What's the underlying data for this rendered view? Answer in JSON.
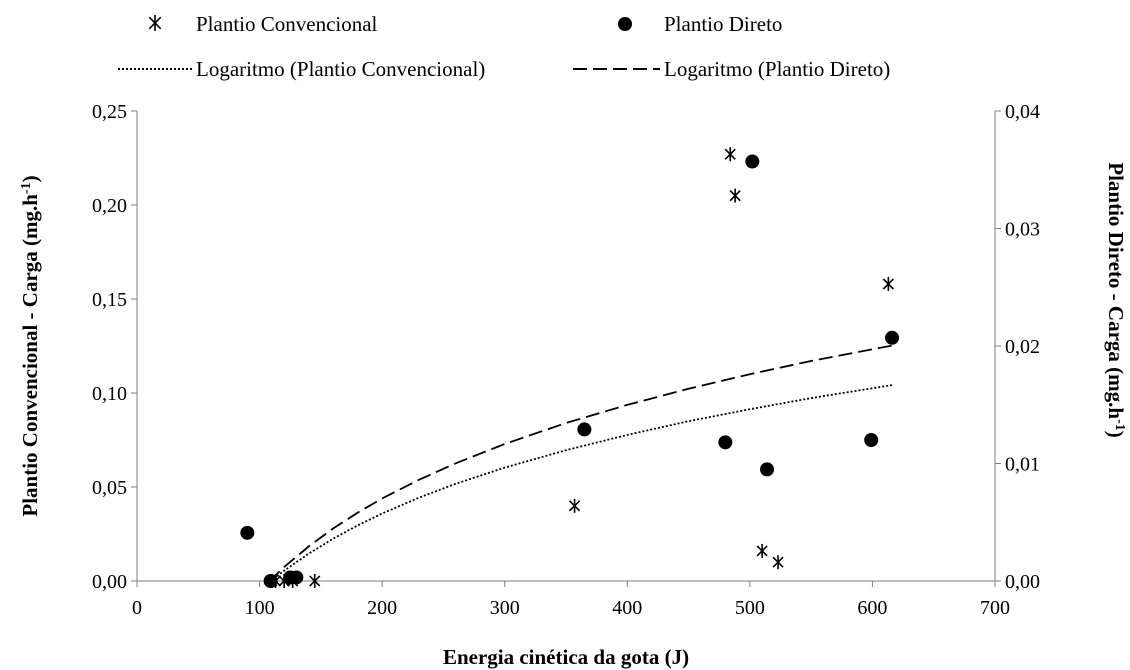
{
  "chart_data": {
    "type": "scatter",
    "xlabel": "Energia cinética da gota (J)",
    "ylabel_left": "Plantio Convencional - Carga (mg.h",
    "ylabel_left_sup": "-1",
    "ylabel_left_tail": ")",
    "ylabel_right": "Plantio Direto - Carga (mg.h",
    "ylabel_right_sup": "-1",
    "ylabel_right_tail": ")",
    "xlim": [
      0,
      700
    ],
    "ylim_left": [
      0,
      0.25
    ],
    "ylim_right": [
      0,
      0.04
    ],
    "x_ticks": [
      "0",
      "100",
      "200",
      "300",
      "400",
      "500",
      "600",
      "700"
    ],
    "y_left_ticks": [
      "0,00",
      "0,05",
      "0,10",
      "0,15",
      "0,20",
      "0,25"
    ],
    "y_right_ticks": [
      "0,00",
      "0,01",
      "0,02",
      "0,03",
      "0,04"
    ],
    "grid": false,
    "legend_position": "top",
    "series": [
      {
        "name": "Plantio Convencional",
        "marker": "asterisk",
        "axis": "left",
        "points": [
          [
            110,
            0.0
          ],
          [
            113,
            0.0
          ],
          [
            120,
            0.0
          ],
          [
            127,
            0.0
          ],
          [
            145,
            0.0
          ],
          [
            357,
            0.04
          ],
          [
            484,
            0.227
          ],
          [
            488,
            0.205
          ],
          [
            510,
            0.016
          ],
          [
            523,
            0.01
          ],
          [
            613,
            0.158
          ]
        ]
      },
      {
        "name": "Plantio Direto",
        "marker": "circle",
        "axis": "right",
        "points": [
          [
            90,
            0.0041
          ],
          [
            109,
            0.0
          ],
          [
            125,
            0.0003
          ],
          [
            130,
            0.0003
          ],
          [
            365,
            0.0129
          ],
          [
            480,
            0.0118
          ],
          [
            502,
            0.0357
          ],
          [
            514,
            0.0095
          ],
          [
            599,
            0.012
          ],
          [
            616,
            0.0207
          ]
        ]
      }
    ],
    "trendlines": [
      {
        "name": "Logaritmo (Plantio Convencional)",
        "style": "dotted",
        "axis": "left",
        "x": [
          109,
          120,
          140,
          160,
          180,
          200,
          230,
          260,
          300,
          350,
          400,
          450,
          500,
          550,
          616
        ],
        "y": [
          0.0,
          0.0055,
          0.0145,
          0.0225,
          0.0296,
          0.0359,
          0.0443,
          0.0517,
          0.0603,
          0.0696,
          0.0777,
          0.085,
          0.0914,
          0.0973,
          0.1042
        ]
      },
      {
        "name": "Logaritmo (Plantio Direto)",
        "style": "dashed",
        "axis": "right",
        "x": [
          108,
          120,
          140,
          160,
          180,
          200,
          230,
          260,
          300,
          350,
          400,
          450,
          500,
          550,
          616
        ],
        "y": [
          0.0,
          0.00118,
          0.00294,
          0.00447,
          0.00581,
          0.00702,
          0.00861,
          0.01002,
          0.01166,
          0.01345,
          0.01499,
          0.01637,
          0.0176,
          0.01872,
          0.02003
        ]
      }
    ],
    "legend": [
      {
        "label": "Plantio Convencional",
        "marker": "asterisk"
      },
      {
        "label": "Plantio Direto",
        "marker": "circle"
      },
      {
        "label": "Logaritmo (Plantio Convencional)",
        "marker": "dotted"
      },
      {
        "label": "Logaritmo (Plantio Direto)",
        "marker": "dashed"
      }
    ]
  }
}
